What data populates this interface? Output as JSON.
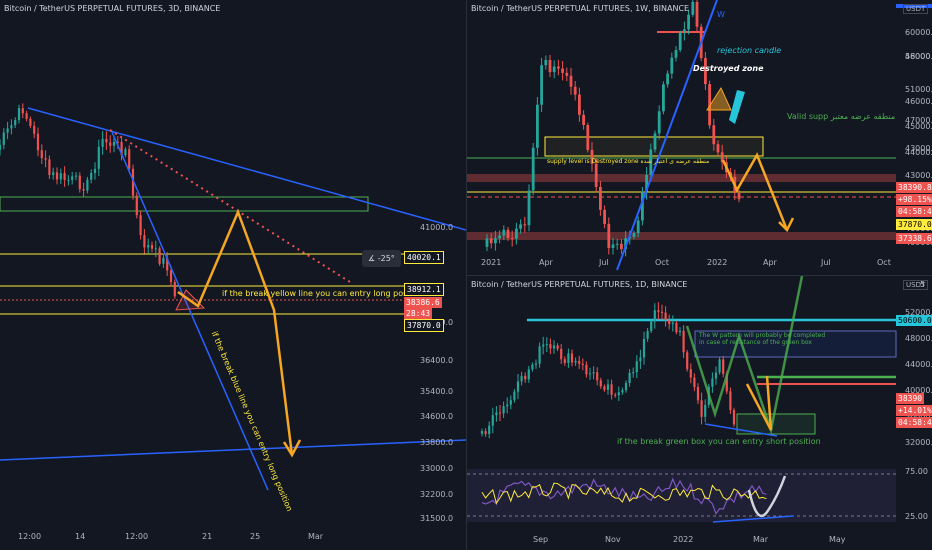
{
  "colors": {
    "bg": "#131722",
    "up": "#26a69a",
    "down": "#ef5350",
    "blue": "#2962ff",
    "orange": "#f5a623",
    "yellow": "#ffeb3b",
    "cyan": "#26c6da",
    "green_zone": "#4caf50",
    "rsi": "#7e57c2"
  },
  "left": {
    "title": "Bitcoin / TetherUS PERPETUAL FUTURES, 3D, BINANCE",
    "yaxis": [
      "41000.0",
      "39400.0",
      "36400.0",
      "35400.0",
      "34600.0",
      "33800.0",
      "33000.0",
      "32200.0",
      "31500.0"
    ],
    "xaxis": [
      "12:00",
      "14",
      "12:00",
      "21",
      "25",
      "Mar"
    ],
    "price_tags": {
      "p1": "40020.1",
      "p2": "38912.1",
      "p3": "38386.6",
      "p3_time": "28:43",
      "p4": "37870.0"
    },
    "angle_tool": "-25°",
    "ann_yellow": "if the break yellow line you can entry long position",
    "ann_blue": "if the break blue line you can entry long position"
  },
  "top_right": {
    "title": "Bitcoin / TetherUS PERPETUAL FUTURES, 1W, BINANCE",
    "usdt": "USDT",
    "yaxis": [
      "48000.0",
      "46000.0",
      "45000.0",
      "44000.0",
      "43000.0",
      "42000.0",
      "41000.0",
      "60000.0",
      "56000.0",
      "51000.0",
      "47000.0",
      "43000.0",
      "40000.0"
    ],
    "xaxis": [
      "2021",
      "Apr",
      "Jul",
      "Oct",
      "2022",
      "Apr",
      "Jul",
      "Oct"
    ],
    "price_tags": {
      "p1": "38390.8",
      "p1_pct": "+98.15%",
      "p1_time": "04:58:43",
      "p2": "37870.0",
      "p3": "37338.6"
    },
    "w_label": "W",
    "ann_rejection": "rejection candle",
    "ann_destroyed": "Destroyed zone",
    "ann_valid": "Valid supp منطقه عرضه معتبر",
    "ann_supply": "supply level is Destroyed zone منطقه عرضه ی اعتبار شده"
  },
  "bottom_right": {
    "title": "Bitcoin / TetherUS PERPETUAL FUTURES, 1D, BINANCE",
    "usdt": "USDT",
    "yaxis": [
      "52000.0",
      "48000.0",
      "44000.0",
      "40000.0",
      "36000.0",
      "32000.0",
      "75.00",
      "25.00"
    ],
    "xaxis": [
      "Sep",
      "Nov",
      "2022",
      "Mar",
      "May"
    ],
    "price_tags": {
      "p1": "50600.0",
      "p2": "38390",
      "p2_pct": "+14.01%",
      "p2_time": "04:58:43"
    },
    "five": "5",
    "ann_w": "The W pattern will probably be completed in case of resistance of the green box",
    "ann_green": "if the break green box you can entry short position"
  }
}
